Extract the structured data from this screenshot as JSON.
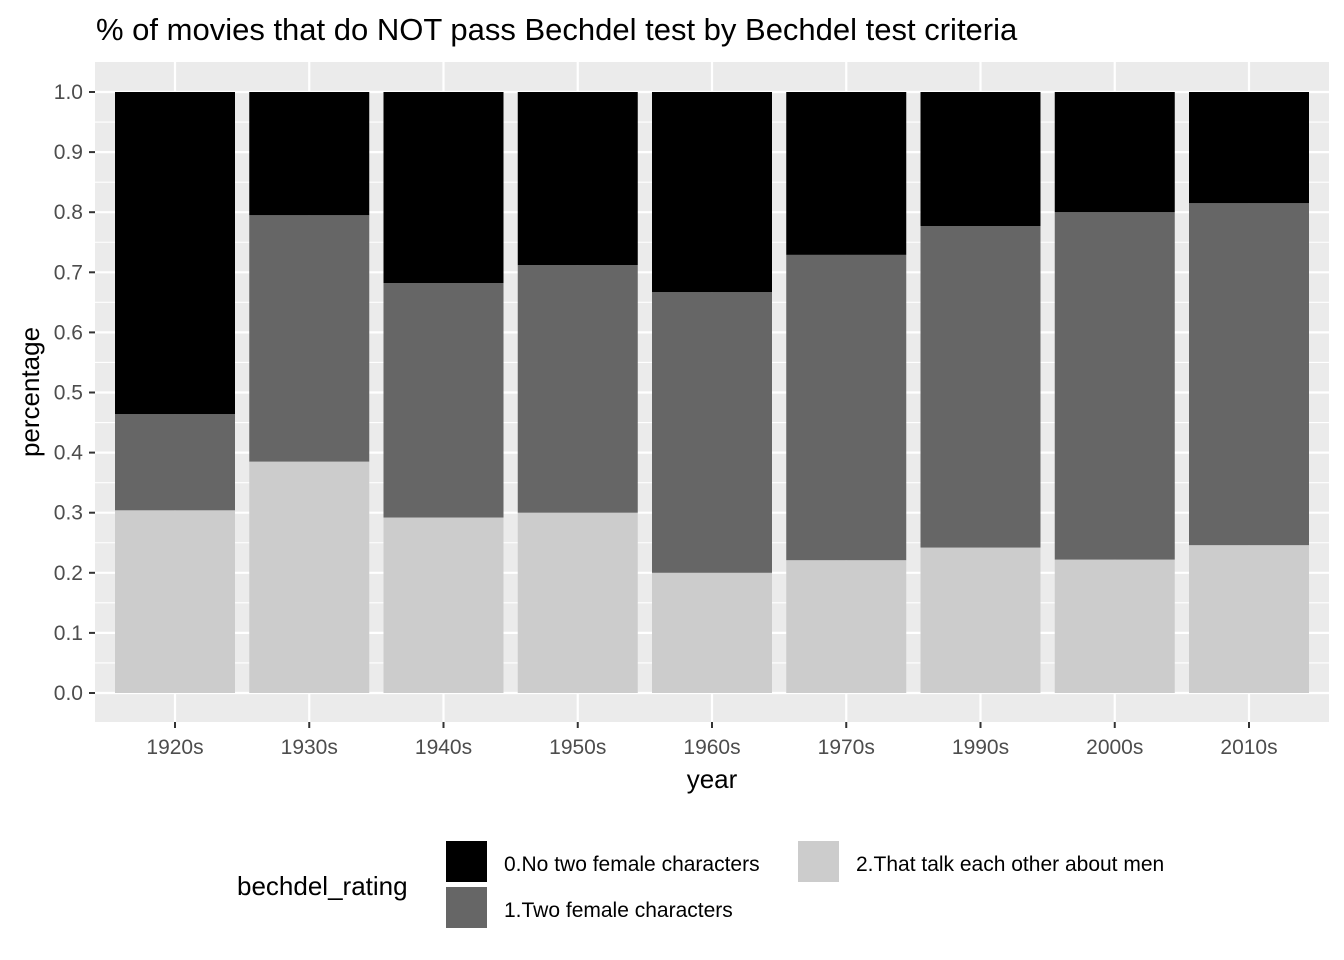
{
  "chart_data": {
    "type": "bar",
    "stacked": true,
    "title": "% of movies that do NOT pass Bechdel test by Bechdel test criteria",
    "xlabel": "year",
    "ylabel": "percentage",
    "ylim": [
      0,
      1.0
    ],
    "yticks": [
      "0.0",
      "0.1",
      "0.2",
      "0.3",
      "0.4",
      "0.5",
      "0.6",
      "0.7",
      "0.8",
      "0.9",
      "1.0"
    ],
    "grid": true,
    "legend_position": "bottom",
    "legend_title": "bechdel_rating",
    "categories": [
      "1920s",
      "1930s",
      "1940s",
      "1950s",
      "1960s",
      "1970s",
      "1990s",
      "2000s",
      "2010s"
    ],
    "series": [
      {
        "name": "0.No two female characters",
        "color": "#000000",
        "values": [
          0.536,
          0.205,
          0.318,
          0.288,
          0.333,
          0.271,
          0.223,
          0.2,
          0.185
        ]
      },
      {
        "name": "1.Two female characters",
        "color": "#666666",
        "values": [
          0.16,
          0.41,
          0.39,
          0.412,
          0.467,
          0.508,
          0.535,
          0.578,
          0.569
        ]
      },
      {
        "name": "2.That talk each other about men",
        "color": "#cccccc",
        "values": [
          0.304,
          0.385,
          0.292,
          0.3,
          0.2,
          0.221,
          0.242,
          0.222,
          0.246
        ]
      }
    ]
  }
}
